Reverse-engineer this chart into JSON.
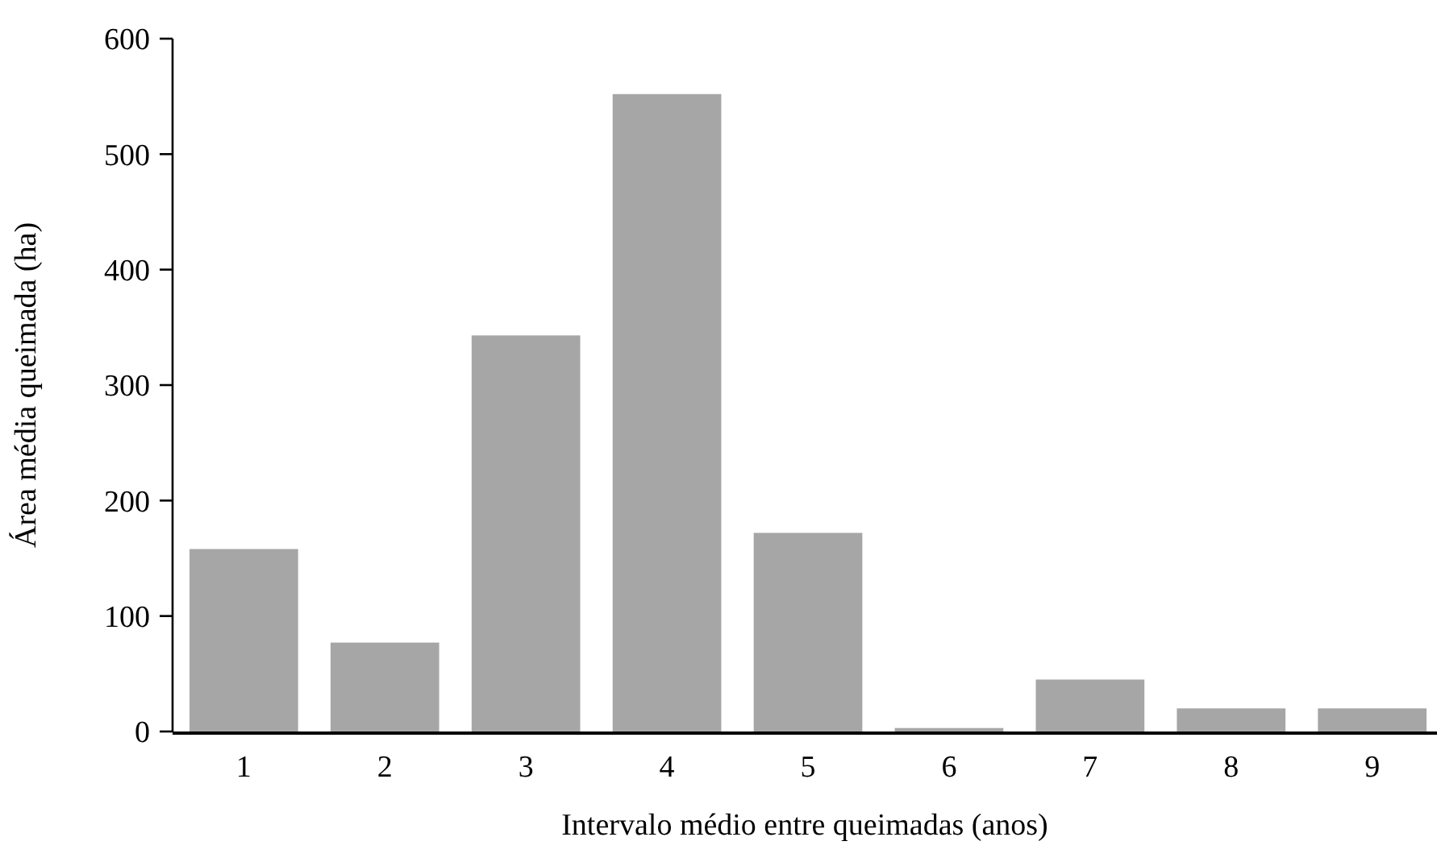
{
  "chart_data": {
    "type": "bar",
    "xlabel": "Intervalo médio entre queimadas (anos)",
    "ylabel": "Área média queimada (ha)",
    "categories": [
      "1",
      "2",
      "3",
      "4",
      "5",
      "6",
      "7",
      "8",
      "9"
    ],
    "values": [
      158,
      77,
      343,
      552,
      172,
      3,
      45,
      20,
      20
    ],
    "color": "#a6a6a6",
    "ylim": [
      0,
      600
    ],
    "yticks": [
      0,
      100,
      200,
      300,
      400,
      500,
      600
    ],
    "grid": false
  }
}
